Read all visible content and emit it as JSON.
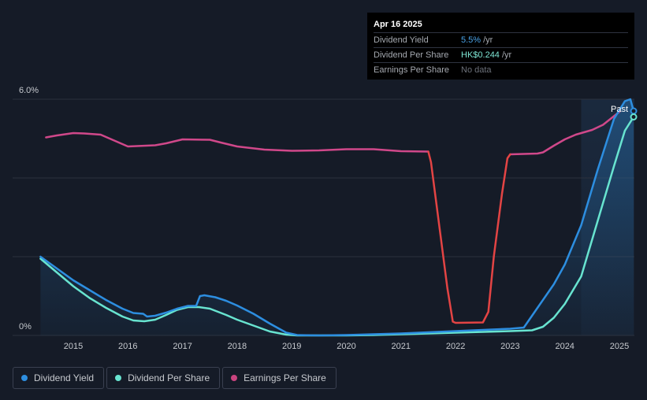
{
  "tooltip": {
    "date": "Apr 16 2025",
    "rows": [
      {
        "label": "Dividend Yield",
        "value": "5.5%",
        "unit": "/yr"
      },
      {
        "label": "Dividend Per Share",
        "value": "HK$0.244",
        "unit": "/yr"
      },
      {
        "label": "Earnings Per Share",
        "value": "No data",
        "unit": ""
      }
    ]
  },
  "past_label": "Past",
  "colors": {
    "dividend_yield": "#2d8ee0",
    "dividend_per_share": "#68e4d0",
    "earnings_per_share": "#d0488a",
    "eps_gap": "#e34444",
    "grid": "#2c313d",
    "axis_text": "#c6c9ce"
  },
  "legend": [
    {
      "label": "Dividend Yield",
      "color": "#2d8ee0"
    },
    {
      "label": "Dividend Per Share",
      "color": "#68e4d0"
    },
    {
      "label": "Earnings Per Share",
      "color": "#c9447f"
    }
  ],
  "chart_data": {
    "type": "line",
    "y_tick_labels": [
      {
        "value": 6.0,
        "label": "6.0%"
      },
      {
        "value": 0,
        "label": "0%"
      }
    ],
    "ylim": [
      0,
      6.0
    ],
    "xlim": [
      2014.2,
      2025.3
    ],
    "x_ticks": [
      2015,
      2016,
      2017,
      2018,
      2019,
      2020,
      2021,
      2022,
      2023,
      2024,
      2025
    ],
    "gridlines": [
      0,
      2,
      4,
      6
    ],
    "past_region_start": 2024.3,
    "series": [
      {
        "name": "Dividend Yield",
        "key": "dividend_yield",
        "x": [
          2014.4,
          2014.7,
          2015.0,
          2015.3,
          2015.6,
          2015.9,
          2016.1,
          2016.28,
          2016.35,
          2016.5,
          2016.7,
          2016.9,
          2017.1,
          2017.25,
          2017.32,
          2017.4,
          2017.6,
          2017.8,
          2018.0,
          2018.3,
          2018.6,
          2018.9,
          2019.1,
          2019.5,
          2020.0,
          2020.5,
          2021.0,
          2021.5,
          2022.0,
          2022.5,
          2023.0,
          2023.25,
          2023.5,
          2023.8,
          2024.0,
          2024.3,
          2024.6,
          2024.9,
          2025.1,
          2025.2,
          2025.26
        ],
        "y": [
          2.0,
          1.7,
          1.4,
          1.15,
          0.9,
          0.68,
          0.57,
          0.55,
          0.48,
          0.5,
          0.58,
          0.68,
          0.75,
          0.75,
          1.0,
          1.02,
          0.97,
          0.88,
          0.76,
          0.55,
          0.3,
          0.07,
          0.01,
          0.0,
          0.01,
          0.03,
          0.05,
          0.08,
          0.11,
          0.14,
          0.17,
          0.2,
          0.7,
          1.3,
          1.8,
          2.8,
          4.2,
          5.5,
          5.95,
          6.0,
          5.7
        ]
      },
      {
        "name": "Dividend Per Share",
        "key": "dividend_per_share",
        "x": [
          2014.4,
          2014.7,
          2015.0,
          2015.3,
          2015.6,
          2015.9,
          2016.1,
          2016.3,
          2016.5,
          2016.7,
          2016.9,
          2017.1,
          2017.3,
          2017.5,
          2017.8,
          2018.0,
          2018.3,
          2018.6,
          2018.9,
          2019.1,
          2019.5,
          2020.0,
          2020.5,
          2021.0,
          2021.5,
          2022.0,
          2022.5,
          2023.0,
          2023.4,
          2023.6,
          2023.8,
          2024.0,
          2024.3,
          2024.6,
          2024.9,
          2025.1,
          2025.26
        ],
        "y": [
          1.95,
          1.6,
          1.25,
          0.95,
          0.7,
          0.48,
          0.38,
          0.36,
          0.4,
          0.52,
          0.65,
          0.72,
          0.72,
          0.68,
          0.52,
          0.4,
          0.25,
          0.1,
          0.02,
          0.0,
          0.0,
          0.0,
          0.01,
          0.03,
          0.05,
          0.07,
          0.09,
          0.11,
          0.13,
          0.22,
          0.45,
          0.8,
          1.5,
          2.9,
          4.3,
          5.2,
          5.55
        ]
      },
      {
        "name": "Earnings Per Share",
        "key": "earnings_per_share",
        "x": [
          2014.5,
          2014.7,
          2015.0,
          2015.2,
          2015.5,
          2015.7,
          2016.0,
          2016.5,
          2016.7,
          2017.0,
          2017.5,
          2017.7,
          2018.0,
          2018.5,
          2019.0,
          2019.5,
          2020.0,
          2020.5,
          2021.0,
          2021.5
        ],
        "y": [
          5.03,
          5.08,
          5.14,
          5.13,
          5.1,
          4.98,
          4.8,
          4.83,
          4.88,
          4.98,
          4.97,
          4.9,
          4.8,
          4.72,
          4.69,
          4.7,
          4.73,
          4.73,
          4.68,
          4.67
        ]
      },
      {
        "name": "Earnings Per Share (gap)",
        "key": "eps_gap",
        "x": [
          2021.5,
          2021.55,
          2021.7,
          2021.85,
          2021.95,
          2022.0,
          2022.5,
          2022.6,
          2022.7,
          2022.85,
          2022.95,
          2023.0
        ],
        "y": [
          4.67,
          4.4,
          2.8,
          1.2,
          0.35,
          0.32,
          0.33,
          0.6,
          2.0,
          3.6,
          4.5,
          4.6
        ]
      },
      {
        "name": "Earnings Per Share (recent)",
        "key": "earnings_per_share",
        "x": [
          2023.0,
          2023.5,
          2023.6,
          2023.8,
          2024.0,
          2024.2,
          2024.5,
          2024.7,
          2025.0
        ],
        "y": [
          4.6,
          4.62,
          4.65,
          4.82,
          4.98,
          5.1,
          5.22,
          5.35,
          5.68
        ]
      }
    ]
  }
}
